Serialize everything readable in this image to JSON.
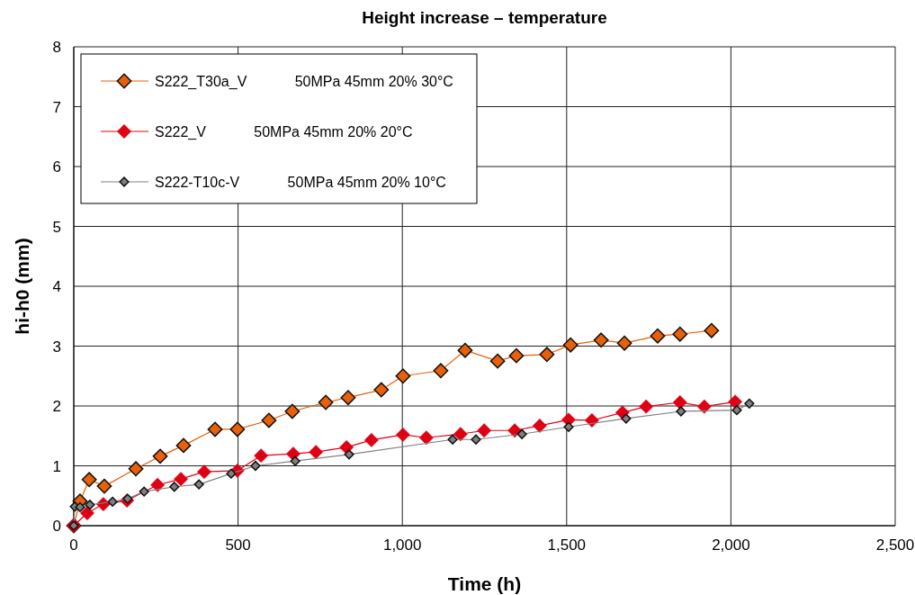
{
  "chart_data": {
    "type": "line",
    "title": "Height increase – temperature",
    "xlabel": "Time (h)",
    "ylabel": "hi-h0 (mm)",
    "xlim": [
      0,
      2500
    ],
    "xticks": [
      0,
      500,
      {
        "value": 1000,
        "label": "1,000"
      },
      {
        "value": 1500,
        "label": "1,500"
      },
      {
        "value": 2000,
        "label": "2,000"
      },
      {
        "value": 2500,
        "label": "2,500"
      }
    ],
    "ylim": [
      0,
      8
    ],
    "yticks": [
      0,
      1,
      2,
      3,
      4,
      5,
      6,
      7,
      8
    ],
    "grid": true,
    "legend": "top left",
    "marker": "diamond",
    "line_style": "solid",
    "series": [
      {
        "name": "S222_T30a_V 50MPa 45mm 20% 30°C",
        "color": "#e8600a",
        "x": [
          0,
          19,
          47,
          93,
          189,
          263,
          334,
          430,
          498,
          594,
          665,
          767,
          835,
          936,
          1002,
          1117,
          1191,
          1290,
          1347,
          1440,
          1512,
          1605,
          1676,
          1777,
          1845,
          1941
        ],
        "values": [
          0,
          0.41,
          0.77,
          0.66,
          0.95,
          1.16,
          1.34,
          1.61,
          1.61,
          1.76,
          1.91,
          2.06,
          2.14,
          2.27,
          2.5,
          2.59,
          2.93,
          2.75,
          2.84,
          2.86,
          3.02,
          3.1,
          3.05,
          3.17,
          3.2,
          3.26
        ]
      },
      {
        "name": "S222_V 50MPa 45mm 20% 20°C",
        "color": "#e00014",
        "x": [
          0,
          41,
          90,
          162,
          255,
          326,
          397,
          498,
          570,
          668,
          737,
          830,
          906,
          1002,
          1073,
          1177,
          1249,
          1342,
          1418,
          1506,
          1577,
          1670,
          1742,
          1845,
          1919,
          2013
        ],
        "values": [
          0,
          0.21,
          0.36,
          0.42,
          0.68,
          0.78,
          0.9,
          0.92,
          1.17,
          1.2,
          1.23,
          1.31,
          1.43,
          1.52,
          1.47,
          1.53,
          1.59,
          1.59,
          1.67,
          1.77,
          1.76,
          1.89,
          1.99,
          2.06,
          1.99,
          2.07
        ]
      },
      {
        "name": "S222-T10c-V 50MPa 45mm 20% 10°C",
        "color": "#808080",
        "x": [
          0,
          3,
          19,
          49,
          118,
          164,
          214,
          306,
          381,
          479,
          553,
          674,
          838,
          1153,
          1224,
          1364,
          1506,
          1681,
          1848,
          2018,
          2056
        ],
        "values": [
          0,
          0.32,
          0.31,
          0.35,
          0.4,
          0.45,
          0.57,
          0.65,
          0.69,
          0.87,
          1.0,
          1.08,
          1.19,
          1.44,
          1.44,
          1.53,
          1.65,
          1.79,
          1.91,
          1.93,
          2.04
        ]
      }
    ]
  }
}
